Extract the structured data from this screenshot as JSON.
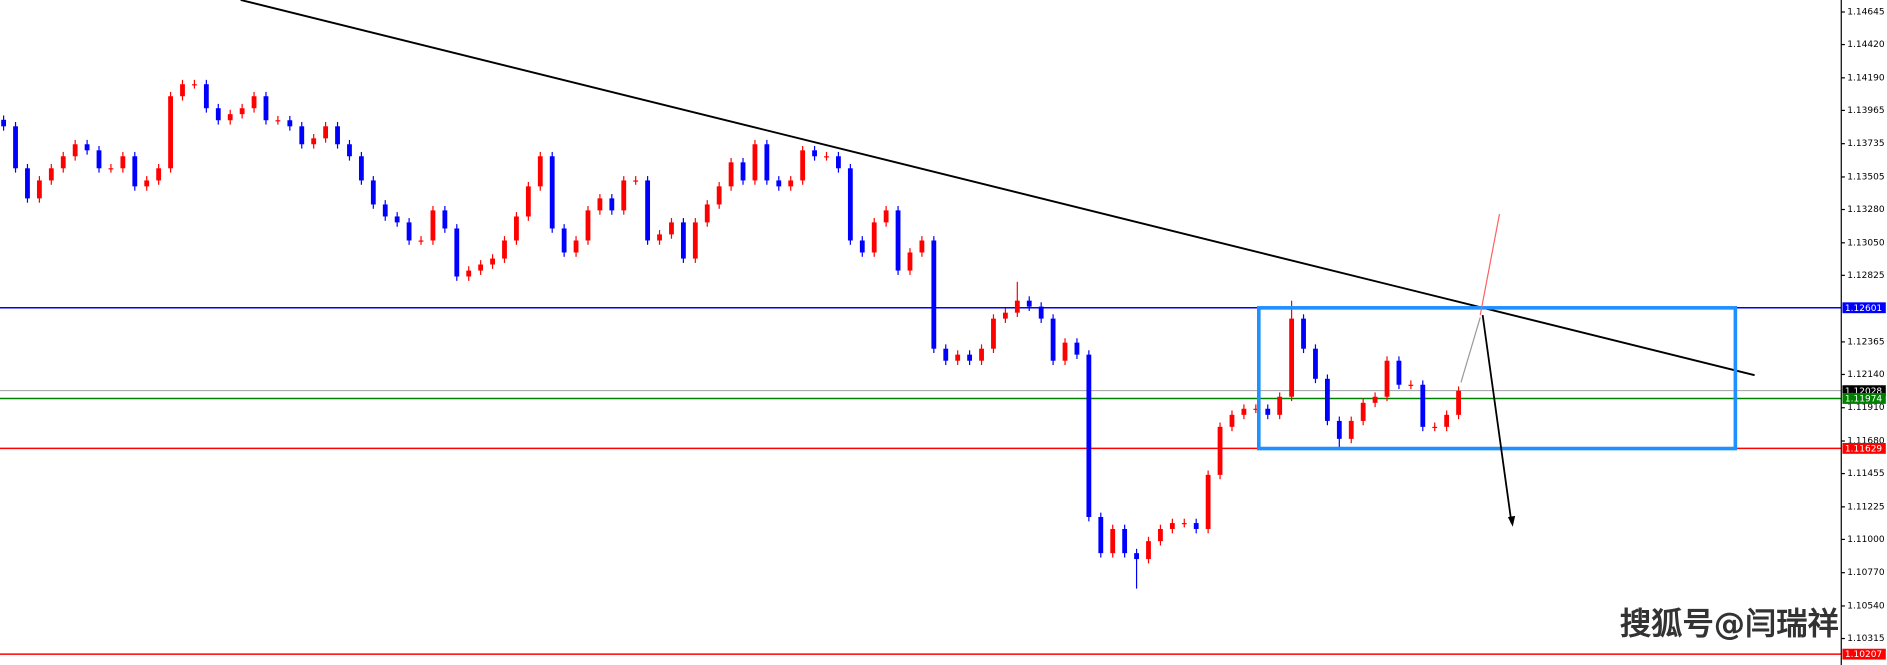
{
  "chart_data": {
    "type": "candlestick",
    "up_color": "#ff0000",
    "down_color": "#0000ff",
    "grid": false,
    "ylim": [
      1.10132,
      1.14728
    ],
    "yticks": [
      {
        "value": 1.14645,
        "label": "1.14645"
      },
      {
        "value": 1.1442,
        "label": "1.14420"
      },
      {
        "value": 1.1419,
        "label": "1.14190"
      },
      {
        "value": 1.13965,
        "label": "1.13965"
      },
      {
        "value": 1.13735,
        "label": "1.13735"
      },
      {
        "value": 1.13505,
        "label": "1.13505"
      },
      {
        "value": 1.1328,
        "label": "1.13280"
      },
      {
        "value": 1.1305,
        "label": "1.13050"
      },
      {
        "value": 1.12825,
        "label": "1.12825"
      },
      {
        "value": 1.12365,
        "label": "1.12365"
      },
      {
        "value": 1.1214,
        "label": "1.12140"
      },
      {
        "value": 1.1191,
        "label": "1.11910"
      },
      {
        "value": 1.1168,
        "label": "1.11680"
      },
      {
        "value": 1.11455,
        "label": "1.11455"
      },
      {
        "value": 1.11225,
        "label": "1.11225"
      },
      {
        "value": 1.11,
        "label": "1.11000"
      },
      {
        "value": 1.1077,
        "label": "1.10770"
      },
      {
        "value": 1.1054,
        "label": "1.10540"
      },
      {
        "value": 1.10315,
        "label": "1.10315"
      }
    ],
    "levels": [
      {
        "value": 1.12601,
        "color": "#0000ff"
      },
      {
        "value": 1.12028,
        "color": "#a0a0a0"
      },
      {
        "value": 1.11974,
        "color": "#008000"
      },
      {
        "value": 1.11629,
        "color": "#ff0000"
      },
      {
        "value": 1.10207,
        "color": "#ff0000"
      }
    ],
    "watermark": "搜狐号@闫瑞祥",
    "ohlc": [
      [
        1.139,
        1.1393,
        1.13825,
        1.13855
      ],
      [
        1.13855,
        1.13885,
        1.13535,
        1.13565
      ],
      [
        1.13565,
        1.13595,
        1.13327,
        1.13357
      ],
      [
        1.13357,
        1.13511,
        1.13327,
        1.13481
      ],
      [
        1.13481,
        1.13595,
        1.13451,
        1.13565
      ],
      [
        1.13565,
        1.13678,
        1.13535,
        1.13648
      ],
      [
        1.13648,
        1.13761,
        1.13618,
        1.13731
      ],
      [
        1.13731,
        1.13761,
        1.13659,
        1.13689
      ],
      [
        1.13689,
        1.13719,
        1.13535,
        1.13565
      ],
      [
        1.13565,
        1.13595,
        1.13535,
        1.13565
      ],
      [
        1.13565,
        1.13678,
        1.13535,
        1.13648
      ],
      [
        1.13648,
        1.13678,
        1.1341,
        1.1344
      ],
      [
        1.1344,
        1.13511,
        1.1341,
        1.13481
      ],
      [
        1.13481,
        1.13595,
        1.13451,
        1.13565
      ],
      [
        1.13565,
        1.14093,
        1.13535,
        1.14063
      ],
      [
        1.14063,
        1.14176,
        1.14033,
        1.14146
      ],
      [
        1.14146,
        1.14176,
        1.14116,
        1.14146
      ],
      [
        1.14146,
        1.14176,
        1.1395,
        1.1398
      ],
      [
        1.1398,
        1.1401,
        1.13867,
        1.13897
      ],
      [
        1.13897,
        1.13969,
        1.13867,
        1.13939
      ],
      [
        1.13939,
        1.1401,
        1.13909,
        1.1398
      ],
      [
        1.1398,
        1.14093,
        1.1395,
        1.14063
      ],
      [
        1.14063,
        1.14093,
        1.13867,
        1.13897
      ],
      [
        1.13897,
        1.13927,
        1.13867,
        1.13897
      ],
      [
        1.13897,
        1.13927,
        1.13825,
        1.13855
      ],
      [
        1.13855,
        1.13885,
        1.13701,
        1.13731
      ],
      [
        1.13731,
        1.13802,
        1.13701,
        1.13772
      ],
      [
        1.13772,
        1.13885,
        1.13742,
        1.13855
      ],
      [
        1.13855,
        1.13885,
        1.13701,
        1.13731
      ],
      [
        1.13731,
        1.13761,
        1.13618,
        1.13648
      ],
      [
        1.13648,
        1.13678,
        1.13451,
        1.13481
      ],
      [
        1.13481,
        1.13511,
        1.13285,
        1.13315
      ],
      [
        1.13315,
        1.13345,
        1.13202,
        1.13232
      ],
      [
        1.13232,
        1.13262,
        1.13161,
        1.13191
      ],
      [
        1.13191,
        1.13221,
        1.13036,
        1.13066
      ],
      [
        1.13066,
        1.13096,
        1.13036,
        1.13066
      ],
      [
        1.13066,
        1.13304,
        1.13036,
        1.13274
      ],
      [
        1.13274,
        1.13304,
        1.13119,
        1.13149
      ],
      [
        1.13149,
        1.13179,
        1.12787,
        1.12817
      ],
      [
        1.12817,
        1.12888,
        1.12787,
        1.12858
      ],
      [
        1.12858,
        1.1293,
        1.12828,
        1.129
      ],
      [
        1.129,
        1.12971,
        1.1287,
        1.12941
      ],
      [
        1.12941,
        1.13096,
        1.12911,
        1.13066
      ],
      [
        1.13066,
        1.13262,
        1.13036,
        1.13232
      ],
      [
        1.13232,
        1.1347,
        1.13202,
        1.1344
      ],
      [
        1.1344,
        1.13678,
        1.1341,
        1.13648
      ],
      [
        1.13648,
        1.13678,
        1.13119,
        1.13149
      ],
      [
        1.13149,
        1.13179,
        1.12953,
        1.12983
      ],
      [
        1.12983,
        1.13096,
        1.12953,
        1.13066
      ],
      [
        1.13066,
        1.13304,
        1.13036,
        1.13274
      ],
      [
        1.13274,
        1.13387,
        1.13244,
        1.13357
      ],
      [
        1.13357,
        1.13387,
        1.13244,
        1.13274
      ],
      [
        1.13274,
        1.13511,
        1.13244,
        1.13481
      ],
      [
        1.13481,
        1.13511,
        1.13451,
        1.13481
      ],
      [
        1.13481,
        1.13511,
        1.13036,
        1.13066
      ],
      [
        1.13066,
        1.13138,
        1.13036,
        1.13108
      ],
      [
        1.13108,
        1.13221,
        1.13078,
        1.13191
      ],
      [
        1.13191,
        1.13221,
        1.12911,
        1.12941
      ],
      [
        1.12941,
        1.13221,
        1.12911,
        1.13191
      ],
      [
        1.13191,
        1.13345,
        1.13161,
        1.13315
      ],
      [
        1.13315,
        1.1347,
        1.13285,
        1.1344
      ],
      [
        1.1344,
        1.13636,
        1.1341,
        1.13606
      ],
      [
        1.13606,
        1.13636,
        1.13451,
        1.13481
      ],
      [
        1.13481,
        1.13761,
        1.13451,
        1.13731
      ],
      [
        1.13731,
        1.13761,
        1.13451,
        1.13481
      ],
      [
        1.13481,
        1.13511,
        1.1341,
        1.1344
      ],
      [
        1.1344,
        1.13511,
        1.1341,
        1.13481
      ],
      [
        1.13481,
        1.13719,
        1.13451,
        1.13689
      ],
      [
        1.13689,
        1.13719,
        1.13618,
        1.13648
      ],
      [
        1.13648,
        1.13678,
        1.13618,
        1.13648
      ],
      [
        1.13648,
        1.13678,
        1.13535,
        1.13565
      ],
      [
        1.13565,
        1.13595,
        1.13036,
        1.13066
      ],
      [
        1.13066,
        1.13096,
        1.12953,
        1.12983
      ],
      [
        1.12983,
        1.13221,
        1.12953,
        1.13191
      ],
      [
        1.13191,
        1.13304,
        1.13161,
        1.13274
      ],
      [
        1.13274,
        1.13304,
        1.12828,
        1.12858
      ],
      [
        1.12858,
        1.13013,
        1.12828,
        1.12983
      ],
      [
        1.12983,
        1.13096,
        1.12953,
        1.13066
      ],
      [
        1.13066,
        1.13096,
        1.12288,
        1.12318
      ],
      [
        1.12318,
        1.12348,
        1.12205,
        1.12235
      ],
      [
        1.12235,
        1.12307,
        1.12205,
        1.12277
      ],
      [
        1.12277,
        1.12307,
        1.12205,
        1.12235
      ],
      [
        1.12235,
        1.12348,
        1.12205,
        1.12318
      ],
      [
        1.12318,
        1.12556,
        1.12288,
        1.12526
      ],
      [
        1.12526,
        1.12597,
        1.12496,
        1.12567
      ],
      [
        1.12567,
        1.1278,
        1.12537,
        1.1265
      ],
      [
        1.1265,
        1.1268,
        1.12579,
        1.12609
      ],
      [
        1.12609,
        1.12639,
        1.12496,
        1.12526
      ],
      [
        1.12526,
        1.12556,
        1.12205,
        1.12235
      ],
      [
        1.12235,
        1.1239,
        1.12205,
        1.1236
      ],
      [
        1.1236,
        1.1239,
        1.12247,
        1.12277
      ],
      [
        1.12277,
        1.12307,
        1.11125,
        1.11155
      ],
      [
        1.11155,
        1.11185,
        1.10875,
        1.10905
      ],
      [
        1.10905,
        1.11102,
        1.10875,
        1.11072
      ],
      [
        1.11072,
        1.11102,
        1.10875,
        1.10905
      ],
      [
        1.10905,
        1.10935,
        1.1066,
        1.10864
      ],
      [
        1.10864,
        1.11018,
        1.10834,
        1.10988
      ],
      [
        1.10988,
        1.11102,
        1.10958,
        1.11072
      ],
      [
        1.11072,
        1.11143,
        1.11042,
        1.11113
      ],
      [
        1.11113,
        1.11143,
        1.11083,
        1.11113
      ],
      [
        1.11113,
        1.11143,
        1.11042,
        1.11072
      ],
      [
        1.11072,
        1.11476,
        1.11042,
        1.11446
      ],
      [
        1.11446,
        1.11808,
        1.11416,
        1.11778
      ],
      [
        1.11778,
        1.11891,
        1.11748,
        1.11861
      ],
      [
        1.11861,
        1.11933,
        1.11831,
        1.11903
      ],
      [
        1.11903,
        1.11933,
        1.11873,
        1.11903
      ],
      [
        1.11903,
        1.11933,
        1.11831,
        1.11861
      ],
      [
        1.11861,
        1.12016,
        1.11831,
        1.11986
      ],
      [
        1.11986,
        1.1265,
        1.11956,
        1.12526
      ],
      [
        1.12526,
        1.12556,
        1.12288,
        1.12318
      ],
      [
        1.12318,
        1.12348,
        1.1208,
        1.1211
      ],
      [
        1.1211,
        1.1214,
        1.11789,
        1.11819
      ],
      [
        1.11819,
        1.11849,
        1.11629,
        1.11695
      ],
      [
        1.11695,
        1.11849,
        1.11665,
        1.11819
      ],
      [
        1.11819,
        1.11974,
        1.11789,
        1.11944
      ],
      [
        1.11944,
        1.12016,
        1.11914,
        1.11986
      ],
      [
        1.11986,
        1.12265,
        1.11956,
        1.12235
      ],
      [
        1.12235,
        1.12265,
        1.12039,
        1.12069
      ],
      [
        1.12069,
        1.12099,
        1.12039,
        1.12069
      ],
      [
        1.12069,
        1.12099,
        1.11748,
        1.11778
      ],
      [
        1.11778,
        1.11808,
        1.11748,
        1.11778
      ],
      [
        1.11778,
        1.11891,
        1.11748,
        1.11861
      ],
      [
        1.11861,
        1.12057,
        1.11831,
        1.12027
      ]
    ]
  }
}
